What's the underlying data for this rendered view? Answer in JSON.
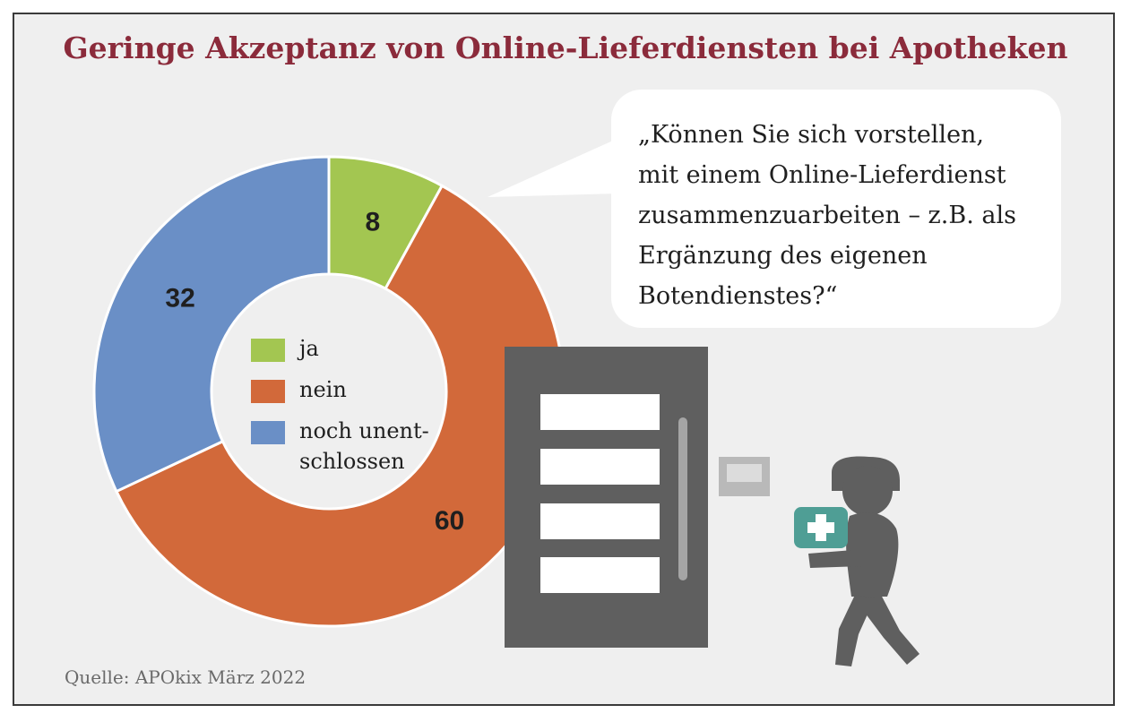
{
  "title": "Geringe Akzeptanz von Online-Lieferdiensten bei Apotheken",
  "question": "„Können Sie sich vorstellen,\nmit einem Online-Lieferdienst\nzusammenzuarbeiten – z.B. als\nErgänzung des eigenen\nBotendienstes?“",
  "source": "Quelle: APOkix März 2022",
  "colors": {
    "ja": "#a3c651",
    "nein": "#d2693a",
    "unentschlossen": "#6a8fc6",
    "title": "#8b2b3b",
    "door": "#5f5f5f",
    "person": "#5f5f5f",
    "box": "#4f9e95"
  },
  "icons": [
    "door-icon",
    "doorbell-icon",
    "delivery-person-icon",
    "medical-box-icon",
    "speech-bubble-icon"
  ],
  "chart_data": {
    "type": "pie",
    "variant": "donut",
    "title": "Geringe Akzeptanz von Online-Lieferdiensten bei Apotheken",
    "categories": [
      "ja",
      "nein",
      "noch unent-\nschlossen"
    ],
    "values": [
      8,
      60,
      32
    ],
    "value_labels": [
      "8",
      "60",
      "32"
    ],
    "colors": [
      "#a3c651",
      "#d2693a",
      "#6a8fc6"
    ],
    "legend_position": "center",
    "start_angle_deg": 0,
    "direction": "clockwise"
  }
}
